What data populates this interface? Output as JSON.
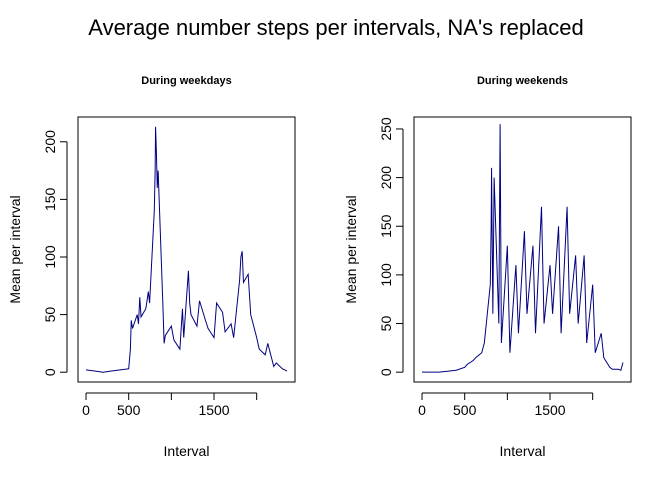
{
  "title": "Average number steps per intervals, NA's replaced",
  "chart_data": [
    {
      "type": "line",
      "title": "During weekdays",
      "x_label": "Interval",
      "y_label": "Mean per interval",
      "x": [
        0,
        100,
        200,
        300,
        400,
        500,
        520,
        530,
        545,
        600,
        615,
        630,
        645,
        700,
        715,
        730,
        745,
        800,
        810,
        815,
        825,
        835,
        845,
        900,
        915,
        930,
        1000,
        1030,
        1100,
        1130,
        1145,
        1200,
        1215,
        1230,
        1300,
        1330,
        1400,
        1430,
        1500,
        1530,
        1600,
        1630,
        1700,
        1730,
        1800,
        1815,
        1830,
        1845,
        1900,
        1930,
        2000,
        2030,
        2100,
        2130,
        2200,
        2230,
        2300,
        2330,
        2355
      ],
      "series": [
        {
          "name": "weekdays",
          "color": "#000080",
          "values": [
            2,
            1,
            0,
            1,
            2,
            3,
            20,
            45,
            38,
            50,
            42,
            65,
            48,
            55,
            62,
            70,
            60,
            140,
            175,
            213,
            190,
            160,
            175,
            60,
            25,
            32,
            40,
            28,
            20,
            55,
            30,
            88,
            60,
            50,
            40,
            62,
            45,
            38,
            30,
            60,
            52,
            35,
            42,
            30,
            80,
            100,
            105,
            78,
            85,
            50,
            30,
            20,
            15,
            25,
            5,
            8,
            3,
            2,
            1
          ]
        }
      ],
      "xlim": [
        -94,
        2449
      ],
      "xticks": [
        0,
        500,
        {
          "value": 1000,
          "label": null
        },
        1500,
        {
          "value": 2000,
          "label": null
        }
      ],
      "ylim": [
        -8.5,
        221.5
      ],
      "yticks": [
        0,
        50,
        100,
        150,
        200
      ]
    },
    {
      "type": "line",
      "title": "During weekends",
      "x_label": "Interval",
      "y_label": "Mean per interval",
      "x": [
        0,
        100,
        200,
        300,
        400,
        500,
        530,
        600,
        630,
        700,
        730,
        800,
        810,
        815,
        830,
        845,
        900,
        915,
        930,
        1000,
        1030,
        1100,
        1130,
        1200,
        1230,
        1300,
        1330,
        1400,
        1430,
        1500,
        1530,
        1600,
        1630,
        1700,
        1730,
        1800,
        1830,
        1900,
        1930,
        2000,
        2030,
        2100,
        2130,
        2200,
        2230,
        2300,
        2330,
        2355
      ],
      "series": [
        {
          "name": "weekends",
          "color": "#000080",
          "values": [
            0,
            0,
            0,
            1,
            2,
            5,
            8,
            12,
            15,
            20,
            30,
            90,
            150,
            210,
            60,
            200,
            50,
            255,
            30,
            130,
            20,
            110,
            40,
            145,
            60,
            130,
            40,
            170,
            50,
            110,
            60,
            150,
            40,
            170,
            60,
            120,
            50,
            120,
            30,
            90,
            20,
            40,
            15,
            5,
            3,
            3,
            2,
            10
          ]
        }
      ],
      "xlim": [
        -94,
        2449
      ],
      "xticks": [
        0,
        500,
        {
          "value": 1000,
          "label": null
        },
        1500,
        {
          "value": 2000,
          "label": null
        }
      ],
      "ylim": [
        -10.1,
        262.3
      ],
      "yticks": [
        0,
        50,
        100,
        150,
        200,
        250
      ]
    }
  ]
}
